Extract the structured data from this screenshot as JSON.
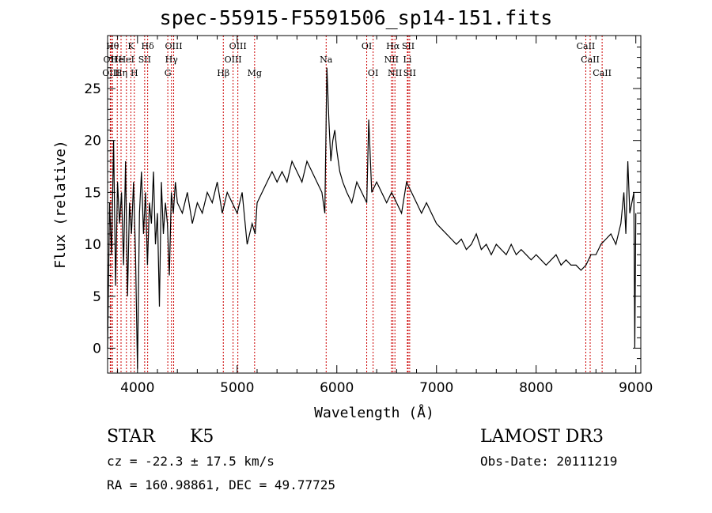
{
  "chart_data": {
    "type": "line",
    "title": "spec-55915-F5591506_sp14-151.fits",
    "xlabel": "Wavelength (Å)",
    "ylabel": "Flux (relative)",
    "xlim": [
      3700,
      9050
    ],
    "ylim": [
      -2.4,
      30.1
    ],
    "x_ticks": [
      4000,
      5000,
      6000,
      7000,
      8000,
      9000
    ],
    "y_ticks": [
      0,
      5,
      10,
      15,
      20,
      25
    ],
    "series": [
      {
        "name": "flux",
        "x": [
          3700,
          3720,
          3740,
          3760,
          3780,
          3800,
          3820,
          3840,
          3860,
          3880,
          3900,
          3920,
          3940,
          3960,
          3980,
          4000,
          4020,
          4040,
          4060,
          4080,
          4100,
          4120,
          4140,
          4160,
          4180,
          4200,
          4220,
          4240,
          4260,
          4280,
          4300,
          4320,
          4340,
          4360,
          4380,
          4400,
          4450,
          4500,
          4550,
          4600,
          4650,
          4700,
          4750,
          4800,
          4850,
          4900,
          4950,
          5000,
          5050,
          5100,
          5150,
          5180,
          5200,
          5250,
          5300,
          5350,
          5400,
          5450,
          5500,
          5550,
          5600,
          5650,
          5700,
          5750,
          5800,
          5850,
          5880,
          5900,
          5920,
          5940,
          5960,
          5980,
          6000,
          6030,
          6060,
          6100,
          6150,
          6200,
          6250,
          6300,
          6320,
          6350,
          6400,
          6450,
          6500,
          6550,
          6600,
          6650,
          6700,
          6750,
          6800,
          6850,
          6900,
          6950,
          7000,
          7050,
          7100,
          7150,
          7200,
          7250,
          7300,
          7350,
          7400,
          7450,
          7500,
          7550,
          7600,
          7650,
          7700,
          7750,
          7800,
          7850,
          7900,
          7950,
          8000,
          8050,
          8100,
          8150,
          8200,
          8250,
          8300,
          8350,
          8400,
          8450,
          8500,
          8550,
          8600,
          8650,
          8700,
          8750,
          8800,
          8850,
          8880,
          8900,
          8920,
          8940,
          8960,
          8980,
          8990,
          9000
        ],
        "y": [
          0,
          14,
          9,
          20,
          6,
          16,
          12,
          15,
          8,
          18,
          5,
          14,
          11,
          16,
          9,
          -2,
          13,
          17,
          11,
          15,
          8,
          14,
          12,
          17,
          10,
          13,
          4,
          16,
          11,
          14,
          12,
          7,
          15,
          13,
          16,
          14,
          13,
          15,
          12,
          14,
          13,
          15,
          14,
          16,
          13,
          15,
          14,
          13,
          15,
          10,
          12,
          11,
          14,
          15,
          16,
          17,
          16,
          17,
          16,
          18,
          17,
          16,
          18,
          17,
          16,
          15,
          13,
          27,
          22,
          18,
          20,
          21,
          19,
          17,
          16,
          15,
          14,
          16,
          15,
          14,
          22,
          15,
          16,
          15,
          14,
          15,
          14,
          13,
          16,
          15,
          14,
          13,
          14,
          13,
          12,
          11.5,
          11,
          10.5,
          10,
          10.5,
          9.5,
          10,
          11,
          9.5,
          10,
          9,
          10,
          9.5,
          9,
          10,
          9,
          9.5,
          9,
          8.5,
          9,
          8.5,
          8,
          8.5,
          9,
          8,
          8.5,
          8,
          8,
          7.5,
          8,
          9,
          9,
          10,
          10.5,
          11,
          10,
          12,
          15,
          11,
          18,
          13,
          14,
          15,
          0,
          13
        ]
      }
    ],
    "lines": [
      {
        "w": 3727,
        "row": 1,
        "label": "OII"
      },
      {
        "w": 3734,
        "row": 2,
        "label": "OIII"
      },
      {
        "w": 3750,
        "row": 0,
        "label": "Hθ"
      },
      {
        "w": 3797,
        "row": 1,
        "label": "He"
      },
      {
        "w": 3835,
        "row": 2,
        "label": "Hη"
      },
      {
        "w": 3889,
        "row": 1,
        "label": "HeI"
      },
      {
        "w": 3934,
        "row": 0,
        "label": "K"
      },
      {
        "w": 3968,
        "row": 2,
        "label": "H"
      },
      {
        "w": 4072,
        "row": 1,
        "label": "SII"
      },
      {
        "w": 4102,
        "row": 0,
        "label": "Hδ"
      },
      {
        "w": 4304,
        "row": 2,
        "label": "G"
      },
      {
        "w": 4341,
        "row": 1,
        "label": "Hγ"
      },
      {
        "w": 4363,
        "row": 0,
        "label": "OIII"
      },
      {
        "w": 4861,
        "row": 2,
        "label": "Hβ"
      },
      {
        "w": 4959,
        "row": 1,
        "label": "OIII"
      },
      {
        "w": 5007,
        "row": 0,
        "label": "OIII"
      },
      {
        "w": 5175,
        "row": 2,
        "label": "Mg"
      },
      {
        "w": 5893,
        "row": 1,
        "label": "Na"
      },
      {
        "w": 6300,
        "row": 0,
        "label": "OI"
      },
      {
        "w": 6364,
        "row": 2,
        "label": "OI"
      },
      {
        "w": 6548,
        "row": 1,
        "label": "NII"
      },
      {
        "w": 6563,
        "row": 0,
        "label": "Hα"
      },
      {
        "w": 6583,
        "row": 2,
        "label": "NII"
      },
      {
        "w": 6708,
        "row": 1,
        "label": "Li"
      },
      {
        "w": 6716,
        "row": 0,
        "label": "SII"
      },
      {
        "w": 6731,
        "row": 2,
        "label": "SII"
      },
      {
        "w": 8498,
        "row": 0,
        "label": "CaII"
      },
      {
        "w": 8542,
        "row": 1,
        "label": "CaII"
      },
      {
        "w": 8662,
        "row": 2,
        "label": "CaII"
      }
    ]
  },
  "info": {
    "object_class": "STAR",
    "subclass": "K5",
    "survey": "LAMOST DR3",
    "cz": "cz = -22.3 ± 17.5 km/s",
    "obs_date": "Obs-Date: 20111219",
    "coords": "RA = 160.98861, DEC =  49.77725"
  },
  "colors": {
    "line_marker": "#cc0000",
    "spectrum": "#000000"
  }
}
